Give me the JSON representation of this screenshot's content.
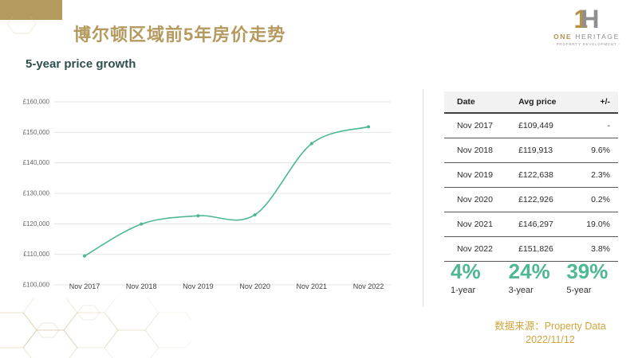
{
  "header": {
    "title": "博尔顿区域前5年房价走势"
  },
  "logo": {
    "monogram_one": "1",
    "monogram_h": "H",
    "name_one": "ONE",
    "name_heritage": "HERITAGE",
    "tagline": "- PROPERTY DEVELOPMENT -"
  },
  "chart_data": {
    "type": "line",
    "title": "5-year price growth",
    "x": [
      "Nov 2017",
      "Nov 2018",
      "Nov 2019",
      "Nov 2020",
      "Nov 2021",
      "Nov 2022"
    ],
    "series": [
      {
        "name": "Avg price",
        "values": [
          109449,
          119913,
          122638,
          122926,
          146297,
          151826
        ]
      }
    ],
    "xlabel": "",
    "ylabel": "",
    "ylim": [
      100000,
      160000
    ],
    "ytick_step": 10000,
    "ytick_labels": [
      "£100,000",
      "£110,000",
      "£120,000",
      "£130,000",
      "£140,000",
      "£150,000",
      "£160,000"
    ],
    "grid": true,
    "legend": "none",
    "line_color": "#4db892"
  },
  "table": {
    "headers": [
      "Date",
      "Avg price",
      "+/-"
    ],
    "rows": [
      [
        "Nov 2017",
        "£109,449",
        "-"
      ],
      [
        "Nov 2018",
        "£119,913",
        "9.6%"
      ],
      [
        "Nov 2019",
        "£122,638",
        "2.3%"
      ],
      [
        "Nov 2020",
        "£122,926",
        "0.2%"
      ],
      [
        "Nov 2021",
        "£146,297",
        "19.0%"
      ],
      [
        "Nov 2022",
        "£151,826",
        "3.8%"
      ]
    ]
  },
  "stats": [
    {
      "value": "4%",
      "label": "1-year"
    },
    {
      "value": "24%",
      "label": "3-year"
    },
    {
      "value": "39%",
      "label": "5-year"
    }
  ],
  "footer": {
    "source": "数据来源：Property Data",
    "date": "2022/11/12"
  },
  "colors": {
    "gold": "#b49a5e",
    "footer_gold": "#d0a53c",
    "green": "#4db892",
    "dark_teal": "#2e4f4c"
  }
}
